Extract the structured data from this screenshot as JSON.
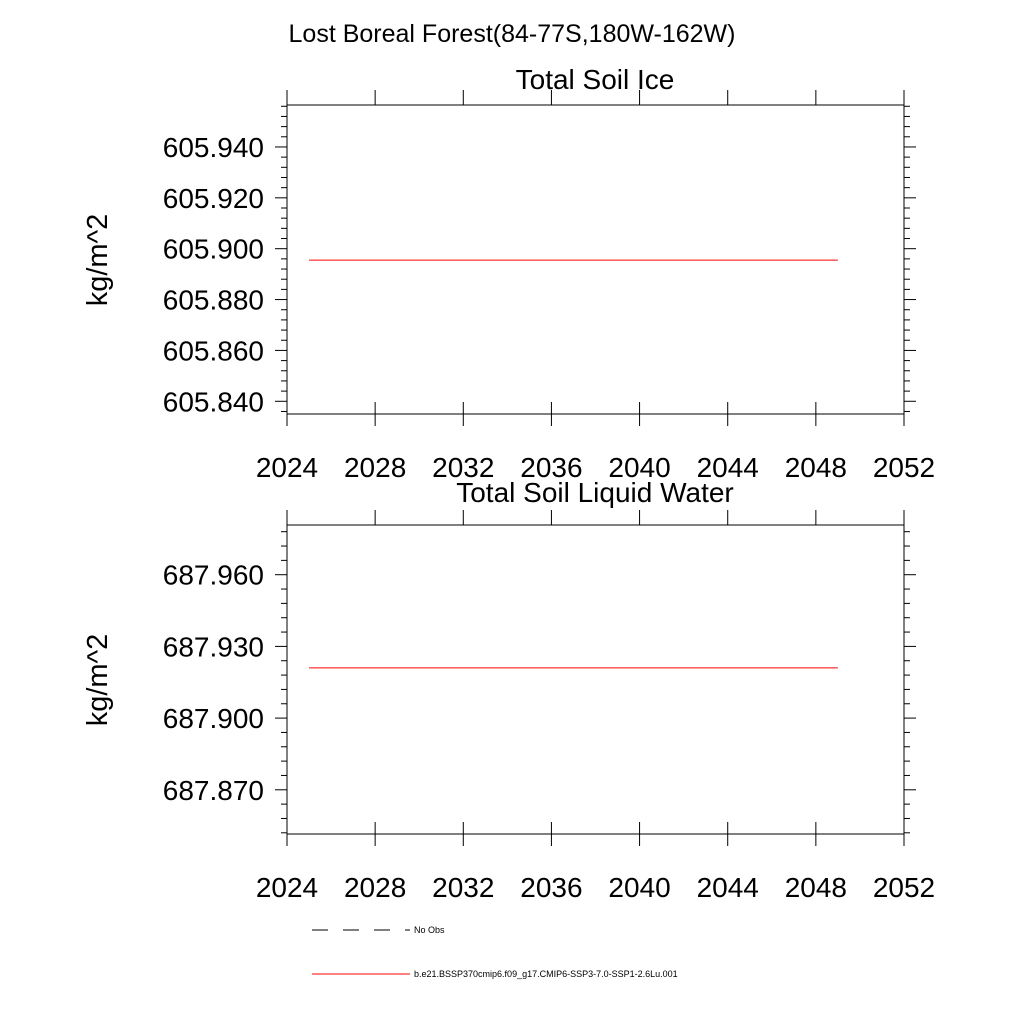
{
  "main_title": "Lost Boreal Forest(84-77S,180W-162W)",
  "chart_data": [
    {
      "type": "line",
      "title": "Total Soil Ice",
      "xlabel": "",
      "ylabel": "kg/m^2",
      "xlim": [
        2024,
        2052
      ],
      "ylim": [
        605.835,
        605.9565
      ],
      "xticks": [
        "2024",
        "2028",
        "2032",
        "2036",
        "2040",
        "2044",
        "2048",
        "2052"
      ],
      "yticks": [
        "605.840",
        "605.860",
        "605.880",
        "605.900",
        "605.920",
        "605.940"
      ],
      "series": [
        {
          "name": "b.e21.BSSP370cmip6.f09_g17.CMIP6-SSP3-7.0-SSP1-2.6Lu.001",
          "color": "#ff0000",
          "x": [
            2025,
            2049
          ],
          "y": [
            605.8955,
            605.8955
          ]
        }
      ]
    },
    {
      "type": "line",
      "title": "Total Soil Liquid Water",
      "xlabel": "",
      "ylabel": "kg/m^2",
      "xlim": [
        2024,
        2052
      ],
      "ylim": [
        687.8515,
        687.9808
      ],
      "xticks": [
        "2024",
        "2028",
        "2032",
        "2036",
        "2040",
        "2044",
        "2048",
        "2052"
      ],
      "yticks": [
        "687.870",
        "687.900",
        "687.930",
        "687.960"
      ],
      "series": [
        {
          "name": "b.e21.BSSP370cmip6.f09_g17.CMIP6-SSP3-7.0-SSP1-2.6Lu.001",
          "color": "#ff0000",
          "x": [
            2025,
            2049
          ],
          "y": [
            687.921,
            687.921
          ]
        }
      ]
    }
  ],
  "legend": {
    "position": "bottom",
    "items": [
      {
        "label": "No Obs",
        "style": "dashed",
        "color": "#000000"
      },
      {
        "label": "b.e21.BSSP370cmip6.f09_g17.CMIP6-SSP3-7.0-SSP1-2.6Lu.001",
        "style": "solid",
        "color": "#ff0000"
      }
    ]
  }
}
